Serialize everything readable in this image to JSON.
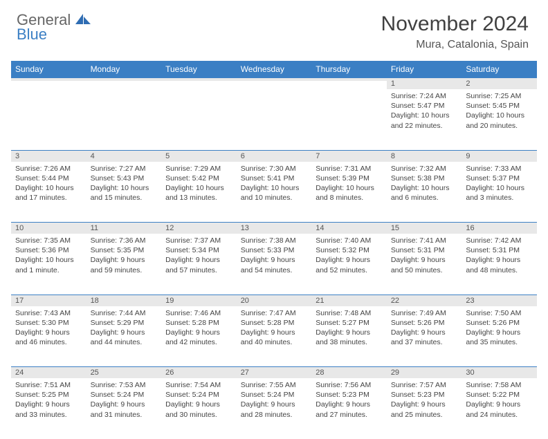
{
  "brand": {
    "general": "General",
    "blue": "Blue"
  },
  "title": "November 2024",
  "location": "Mura, Catalonia, Spain",
  "colors": {
    "header_bg": "#3b7fc4",
    "header_fg": "#ffffff",
    "daynum_bg": "#e8e8e8",
    "rule": "#3b7fc4",
    "text": "#444444"
  },
  "weekdays": [
    "Sunday",
    "Monday",
    "Tuesday",
    "Wednesday",
    "Thursday",
    "Friday",
    "Saturday"
  ],
  "weeks": [
    [
      {
        "n": "",
        "lines": [
          "",
          "",
          "",
          ""
        ]
      },
      {
        "n": "",
        "lines": [
          "",
          "",
          "",
          ""
        ]
      },
      {
        "n": "",
        "lines": [
          "",
          "",
          "",
          ""
        ]
      },
      {
        "n": "",
        "lines": [
          "",
          "",
          "",
          ""
        ]
      },
      {
        "n": "",
        "lines": [
          "",
          "",
          "",
          ""
        ]
      },
      {
        "n": "1",
        "lines": [
          "Sunrise: 7:24 AM",
          "Sunset: 5:47 PM",
          "Daylight: 10 hours",
          "and 22 minutes."
        ]
      },
      {
        "n": "2",
        "lines": [
          "Sunrise: 7:25 AM",
          "Sunset: 5:45 PM",
          "Daylight: 10 hours",
          "and 20 minutes."
        ]
      }
    ],
    [
      {
        "n": "3",
        "lines": [
          "Sunrise: 7:26 AM",
          "Sunset: 5:44 PM",
          "Daylight: 10 hours",
          "and 17 minutes."
        ]
      },
      {
        "n": "4",
        "lines": [
          "Sunrise: 7:27 AM",
          "Sunset: 5:43 PM",
          "Daylight: 10 hours",
          "and 15 minutes."
        ]
      },
      {
        "n": "5",
        "lines": [
          "Sunrise: 7:29 AM",
          "Sunset: 5:42 PM",
          "Daylight: 10 hours",
          "and 13 minutes."
        ]
      },
      {
        "n": "6",
        "lines": [
          "Sunrise: 7:30 AM",
          "Sunset: 5:41 PM",
          "Daylight: 10 hours",
          "and 10 minutes."
        ]
      },
      {
        "n": "7",
        "lines": [
          "Sunrise: 7:31 AM",
          "Sunset: 5:39 PM",
          "Daylight: 10 hours",
          "and 8 minutes."
        ]
      },
      {
        "n": "8",
        "lines": [
          "Sunrise: 7:32 AM",
          "Sunset: 5:38 PM",
          "Daylight: 10 hours",
          "and 6 minutes."
        ]
      },
      {
        "n": "9",
        "lines": [
          "Sunrise: 7:33 AM",
          "Sunset: 5:37 PM",
          "Daylight: 10 hours",
          "and 3 minutes."
        ]
      }
    ],
    [
      {
        "n": "10",
        "lines": [
          "Sunrise: 7:35 AM",
          "Sunset: 5:36 PM",
          "Daylight: 10 hours",
          "and 1 minute."
        ]
      },
      {
        "n": "11",
        "lines": [
          "Sunrise: 7:36 AM",
          "Sunset: 5:35 PM",
          "Daylight: 9 hours",
          "and 59 minutes."
        ]
      },
      {
        "n": "12",
        "lines": [
          "Sunrise: 7:37 AM",
          "Sunset: 5:34 PM",
          "Daylight: 9 hours",
          "and 57 minutes."
        ]
      },
      {
        "n": "13",
        "lines": [
          "Sunrise: 7:38 AM",
          "Sunset: 5:33 PM",
          "Daylight: 9 hours",
          "and 54 minutes."
        ]
      },
      {
        "n": "14",
        "lines": [
          "Sunrise: 7:40 AM",
          "Sunset: 5:32 PM",
          "Daylight: 9 hours",
          "and 52 minutes."
        ]
      },
      {
        "n": "15",
        "lines": [
          "Sunrise: 7:41 AM",
          "Sunset: 5:31 PM",
          "Daylight: 9 hours",
          "and 50 minutes."
        ]
      },
      {
        "n": "16",
        "lines": [
          "Sunrise: 7:42 AM",
          "Sunset: 5:31 PM",
          "Daylight: 9 hours",
          "and 48 minutes."
        ]
      }
    ],
    [
      {
        "n": "17",
        "lines": [
          "Sunrise: 7:43 AM",
          "Sunset: 5:30 PM",
          "Daylight: 9 hours",
          "and 46 minutes."
        ]
      },
      {
        "n": "18",
        "lines": [
          "Sunrise: 7:44 AM",
          "Sunset: 5:29 PM",
          "Daylight: 9 hours",
          "and 44 minutes."
        ]
      },
      {
        "n": "19",
        "lines": [
          "Sunrise: 7:46 AM",
          "Sunset: 5:28 PM",
          "Daylight: 9 hours",
          "and 42 minutes."
        ]
      },
      {
        "n": "20",
        "lines": [
          "Sunrise: 7:47 AM",
          "Sunset: 5:28 PM",
          "Daylight: 9 hours",
          "and 40 minutes."
        ]
      },
      {
        "n": "21",
        "lines": [
          "Sunrise: 7:48 AM",
          "Sunset: 5:27 PM",
          "Daylight: 9 hours",
          "and 38 minutes."
        ]
      },
      {
        "n": "22",
        "lines": [
          "Sunrise: 7:49 AM",
          "Sunset: 5:26 PM",
          "Daylight: 9 hours",
          "and 37 minutes."
        ]
      },
      {
        "n": "23",
        "lines": [
          "Sunrise: 7:50 AM",
          "Sunset: 5:26 PM",
          "Daylight: 9 hours",
          "and 35 minutes."
        ]
      }
    ],
    [
      {
        "n": "24",
        "lines": [
          "Sunrise: 7:51 AM",
          "Sunset: 5:25 PM",
          "Daylight: 9 hours",
          "and 33 minutes."
        ]
      },
      {
        "n": "25",
        "lines": [
          "Sunrise: 7:53 AM",
          "Sunset: 5:24 PM",
          "Daylight: 9 hours",
          "and 31 minutes."
        ]
      },
      {
        "n": "26",
        "lines": [
          "Sunrise: 7:54 AM",
          "Sunset: 5:24 PM",
          "Daylight: 9 hours",
          "and 30 minutes."
        ]
      },
      {
        "n": "27",
        "lines": [
          "Sunrise: 7:55 AM",
          "Sunset: 5:24 PM",
          "Daylight: 9 hours",
          "and 28 minutes."
        ]
      },
      {
        "n": "28",
        "lines": [
          "Sunrise: 7:56 AM",
          "Sunset: 5:23 PM",
          "Daylight: 9 hours",
          "and 27 minutes."
        ]
      },
      {
        "n": "29",
        "lines": [
          "Sunrise: 7:57 AM",
          "Sunset: 5:23 PM",
          "Daylight: 9 hours",
          "and 25 minutes."
        ]
      },
      {
        "n": "30",
        "lines": [
          "Sunrise: 7:58 AM",
          "Sunset: 5:22 PM",
          "Daylight: 9 hours",
          "and 24 minutes."
        ]
      }
    ]
  ]
}
